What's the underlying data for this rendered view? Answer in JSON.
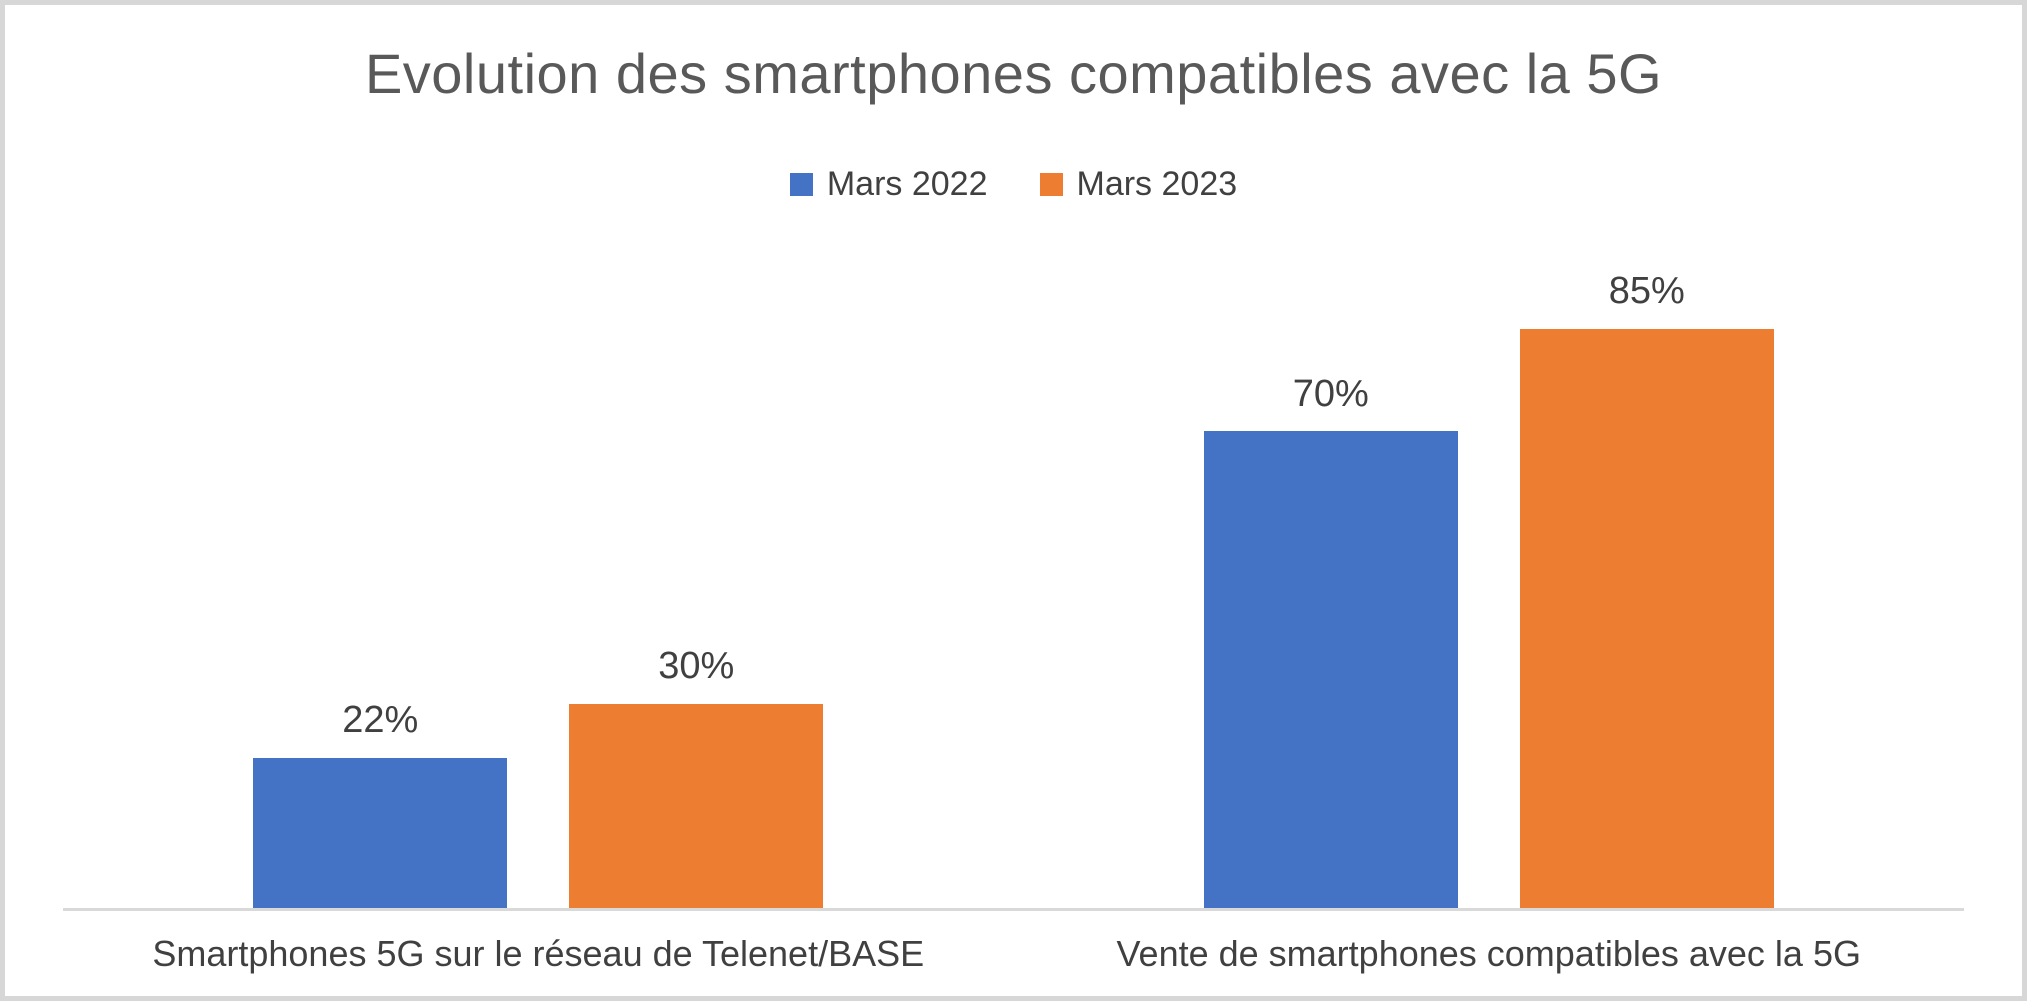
{
  "frame": {
    "background": "#ffffff",
    "border_color": "#d7d7d7"
  },
  "chart_data": {
    "type": "bar",
    "title": "Evolution des smartphones compatibles avec la 5G",
    "categories": [
      "Smartphones 5G sur le réseau de Telenet/BASE",
      "Vente de smartphones compatibles avec la 5G"
    ],
    "series": [
      {
        "name": "Mars 2022",
        "color": "#4472C4",
        "values": [
          22,
          70
        ]
      },
      {
        "name": "Mars 2023",
        "color": "#ED7D31",
        "values": [
          30,
          85
        ]
      }
    ],
    "value_labels": [
      [
        "22%",
        "70%"
      ],
      [
        "30%",
        "85%"
      ]
    ],
    "value_suffix": "%",
    "xlabel": "",
    "ylabel": "",
    "ylim": [
      0,
      100
    ],
    "grid": false,
    "legend_position": "top",
    "colors": {
      "title_text": "#595959",
      "label_text": "#404040",
      "axis_line": "#d9d9d9"
    }
  }
}
